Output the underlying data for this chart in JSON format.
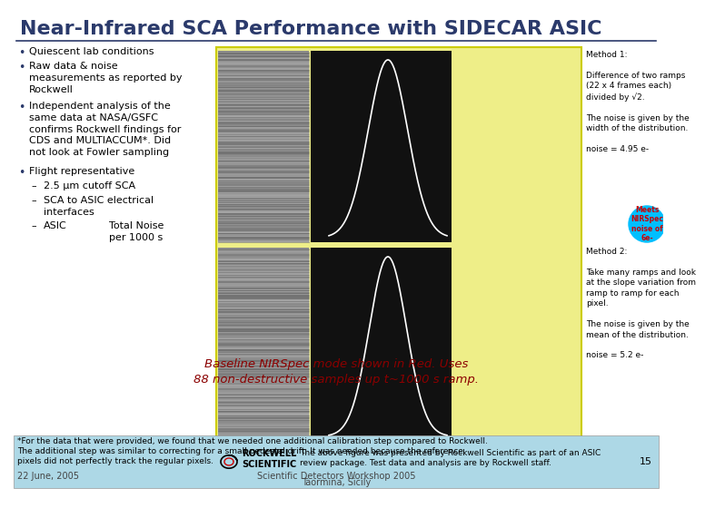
{
  "title": "Near-Infrared SCA Performance with SIDECAR ASIC",
  "title_color": "#2B3A6B",
  "title_fontsize": 16,
  "bg_color": "#FFFFFF",
  "bullet_points": [
    "Quiescent lab conditions",
    "Raw data & noise\nmeasurements as reported by\nRockwell",
    "Independent analysis of the\nsame data at NASA/GSFC\nconfirms Rockwell findings for\nCDS and MULTIACCUM*. Did\nnot look at Fowler sampling",
    "Flight representative"
  ],
  "sub_bullets": [
    "2.5 μm cutoff SCA",
    "SCA to ASIC electrical\ninterfaces",
    "ASIC"
  ],
  "total_noise_text": "Total Noise\nper 1000 s",
  "rockwell_caption": "The above figure was presented by Rockwell Scientific as part of an ASIC\nreview package. Test data and analysis are by Rockwell staff.",
  "baseline_text": "Baseline NIRSpec mode shown in Red. Uses\n88 non-destructive samples up t~1000 s ramp.",
  "baseline_color": "#8B0000",
  "footnote_text": "*For the data that were provided, we found that we needed one additional calibration step compared to Rockwell.\nThe additional step was similar to correcting for a small pedestal drift. It was needed because the reference\npixels did not perfectly track the regular pixels.",
  "footnote_bg": "#ADD8E6",
  "method1_text": "Method 1:\n\nDifference of two ramps\n(22 x 4 frames each)\ndivided by √2.\n\nThe noise is given by the\nwidth of the distribution.\n\nnoise = 4.95 e-",
  "method2_text": "Method 2:\n\nTake many ramps and look\nat the slope variation from\nramp to ramp for each\npixel.\n\nThe noise is given by the\nmean of the distribution.\n\nnoise = 5.2 e-",
  "meets_text": "Meets\nNIRSpec\nnoise of\n6e-",
  "meets_color": "#00BFFF",
  "meets_text_color": "#CC0000",
  "panel_bg": "#EEEE88",
  "panel_border": "#CCCC00",
  "sca_img_color": "#888888",
  "hist_img_color": "#111111",
  "title_line_color": "#2B3A6B",
  "rockwell_text_color": "#111111",
  "bullet_color": "#2B3A6B",
  "footer_color": "#444444",
  "page_number": "15",
  "date_text": "22 June, 2005",
  "workshop_text": "Scientific Detectors Workshop 2005",
  "location_text": "Taormina, Sicily",
  "rockwell_name": "ROCKWELL\nSCIENTIFIC"
}
